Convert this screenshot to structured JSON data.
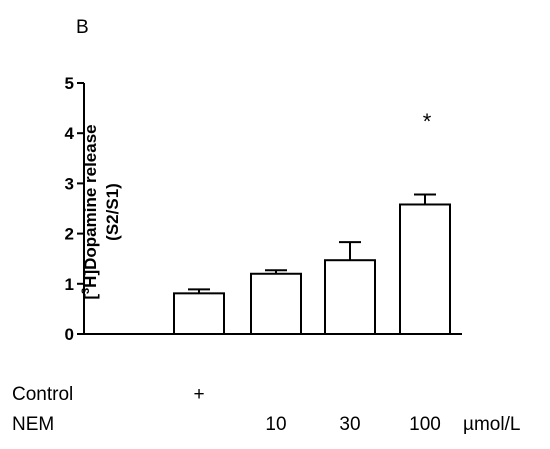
{
  "panel_label": "B",
  "chart_data": {
    "type": "bar",
    "categories": [
      "Control",
      "NEM 10",
      "NEM 30",
      "NEM 100"
    ],
    "values": [
      0.81,
      1.2,
      1.47,
      2.58
    ],
    "errors": [
      0.08,
      0.07,
      0.36,
      0.2
    ],
    "significance": [
      "",
      "",
      "",
      "*"
    ],
    "title": "",
    "ylabel_lines": [
      "[3H]Dopamine release",
      "(S2/S1)"
    ],
    "ylim": [
      0,
      5
    ],
    "yticks": [
      "0",
      "1",
      "2",
      "3",
      "4",
      "5"
    ],
    "bar_fill": "#ffffff",
    "bar_stroke": "#000000",
    "grid": false,
    "legend": "none"
  },
  "conditions": {
    "control_label": "Control",
    "control_marks": [
      "+",
      "",
      "",
      ""
    ],
    "nem_label": "NEM",
    "nem_doses": [
      "",
      "10",
      "30",
      "100"
    ],
    "unit": "µmol/L"
  }
}
